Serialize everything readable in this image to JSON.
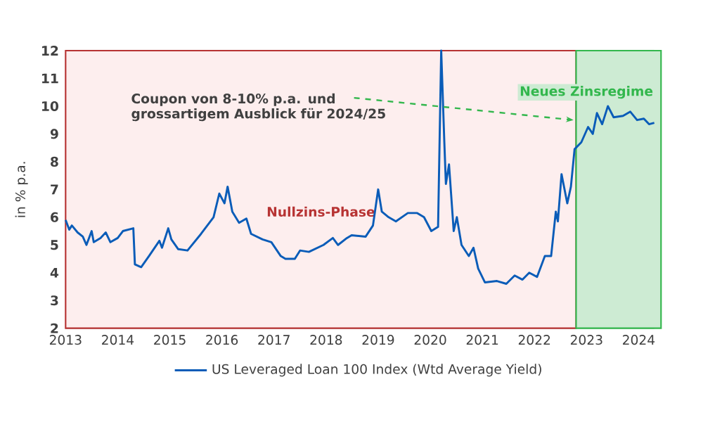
{
  "chart_data": {
    "type": "line",
    "ylabel": "in % p.a.",
    "xlim": [
      2013,
      2024.3
    ],
    "ylim": [
      2,
      12
    ],
    "xticks": [
      2013,
      2014,
      2015,
      2016,
      2017,
      2018,
      2019,
      2020,
      2021,
      2022,
      2023,
      2024
    ],
    "yticks": [
      2,
      3,
      4,
      5,
      6,
      7,
      8,
      9,
      10,
      11,
      12
    ],
    "grid": "y",
    "legend": "bottom",
    "marker": "none",
    "line_style": "solid",
    "series": [
      {
        "name": "US Leveraged Loan 100 Index (Wtd Average Yield)",
        "color": "#0a5cb8",
        "x": [
          2013.0,
          2013.07,
          2013.12,
          2013.23,
          2013.33,
          2013.4,
          2013.5,
          2013.54,
          2013.67,
          2013.77,
          2013.86,
          2014.0,
          2014.1,
          2014.3,
          2014.33,
          2014.45,
          2014.6,
          2014.8,
          2014.85,
          2014.97,
          2015.03,
          2015.16,
          2015.34,
          2015.6,
          2015.84,
          2015.95,
          2016.05,
          2016.11,
          2016.2,
          2016.33,
          2016.47,
          2016.56,
          2016.78,
          2016.95,
          2017.13,
          2017.22,
          2017.4,
          2017.5,
          2017.67,
          2017.95,
          2018.13,
          2018.23,
          2018.4,
          2018.49,
          2018.76,
          2018.9,
          2019.0,
          2019.07,
          2019.2,
          2019.34,
          2019.57,
          2019.75,
          2019.88,
          2020.02,
          2020.15,
          2020.21,
          2020.27,
          2020.3,
          2020.36,
          2020.45,
          2020.51,
          2020.6,
          2020.74,
          2020.83,
          2020.92,
          2021.05,
          2021.28,
          2021.46,
          2021.62,
          2021.77,
          2021.9,
          2022.05,
          2022.2,
          2022.32,
          2022.41,
          2022.45,
          2022.52,
          2022.63,
          2022.7,
          2022.77,
          2022.9,
          2023.03,
          2023.12,
          2023.2,
          2023.3,
          2023.41,
          2023.52,
          2023.7,
          2023.84,
          2023.97,
          2024.1,
          2024.2,
          2024.3
        ],
        "values": [
          5.9,
          5.55,
          5.7,
          5.45,
          5.3,
          5.0,
          5.5,
          5.1,
          5.25,
          5.45,
          5.1,
          5.25,
          5.5,
          5.6,
          4.3,
          4.2,
          4.6,
          5.15,
          4.9,
          5.6,
          5.2,
          4.85,
          4.8,
          5.4,
          6.0,
          6.85,
          6.5,
          7.1,
          6.2,
          5.8,
          5.95,
          5.4,
          5.2,
          5.1,
          4.6,
          4.5,
          4.5,
          4.8,
          4.75,
          5.0,
          5.25,
          5.0,
          5.25,
          5.35,
          5.3,
          5.7,
          7.0,
          6.2,
          6.0,
          5.85,
          6.15,
          6.15,
          6.0,
          5.5,
          5.65,
          12.0,
          8.7,
          7.2,
          7.9,
          5.5,
          6.0,
          5.0,
          4.6,
          4.9,
          4.15,
          3.65,
          3.7,
          3.6,
          3.9,
          3.75,
          4.0,
          3.85,
          4.6,
          4.6,
          6.2,
          5.85,
          7.55,
          6.5,
          7.1,
          8.45,
          8.7,
          9.25,
          9.0,
          9.75,
          9.35,
          10.0,
          9.6,
          9.65,
          9.8,
          9.5,
          9.55,
          9.35,
          9.4
        ]
      }
    ],
    "bands": [
      {
        "axis": "x",
        "from": 2013,
        "to": 2022.8,
        "label": "Nullzins-Phase",
        "color": "#fdeeee"
      },
      {
        "axis": "x",
        "from": 2022.8,
        "to": 2024.43,
        "label": "Neues Zinsregime",
        "color": "#cdebd3"
      }
    ],
    "annotations": [
      {
        "text": "Coupon von 8-10% p.a. und grossartigem Ausblick für 2024/25",
        "x": 2022.75,
        "y": 9.5
      }
    ]
  }
}
